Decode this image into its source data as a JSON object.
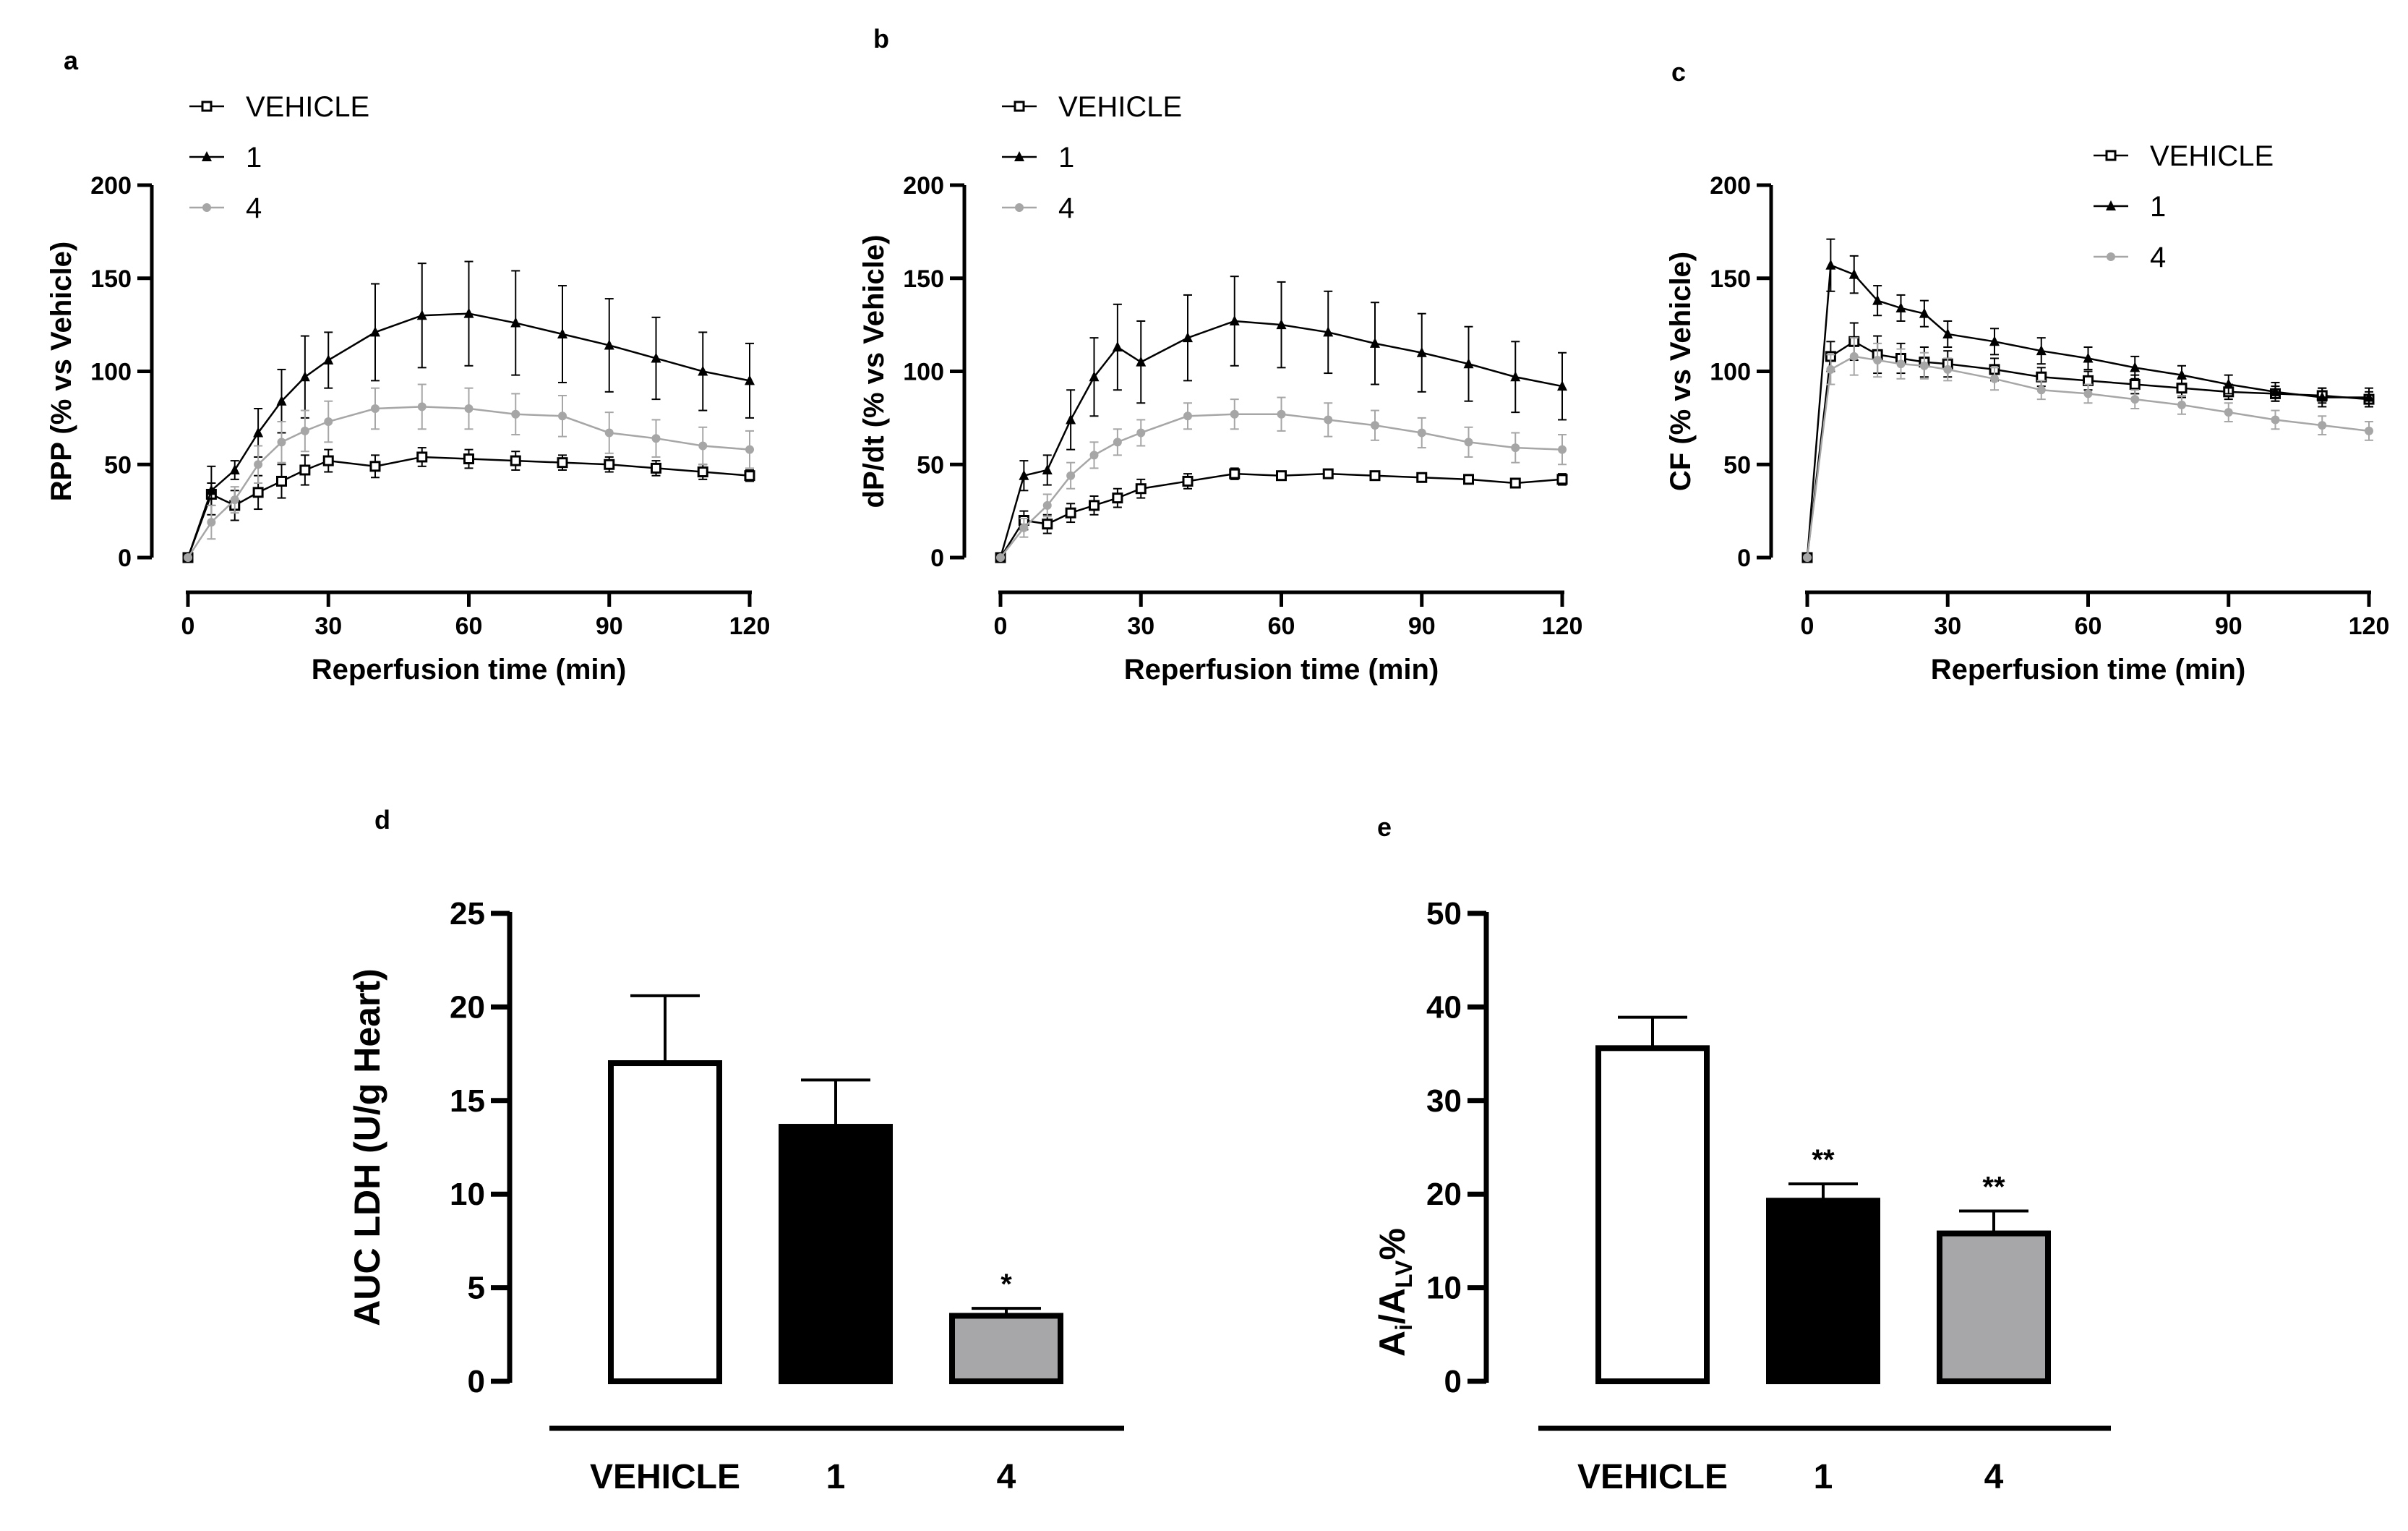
{
  "figure": {
    "colors": {
      "vehicle": "#000000",
      "c1": "#000000",
      "c4": "#a6a6a6",
      "bar_vehicle": "#ffffff",
      "bar_1": "#000000",
      "bar_4": "#a7a7aa"
    }
  },
  "chart_data": [
    {
      "panel": "a",
      "type": "line",
      "xlabel": "Reperfusion time (min)",
      "ylabel": "RPP (% vs Vehicle)",
      "xlim": [
        0,
        120
      ],
      "ylim": [
        0,
        200
      ],
      "xticks": [
        "0",
        "30",
        "60",
        "90",
        "120"
      ],
      "yticks": [
        "0",
        "50",
        "100",
        "150",
        "200"
      ],
      "legend": [
        "VEHICLE",
        "1",
        "4"
      ],
      "x": [
        0,
        5,
        10,
        15,
        20,
        25,
        30,
        40,
        50,
        60,
        70,
        80,
        90,
        100,
        110,
        120
      ],
      "series": [
        {
          "name": "VEHICLE",
          "values": [
            0,
            34,
            28,
            35,
            41,
            47,
            52,
            49,
            54,
            53,
            52,
            51,
            50,
            48,
            46,
            44
          ],
          "errors": [
            0,
            6,
            8,
            9,
            9,
            8,
            6,
            6,
            5,
            5,
            5,
            4,
            4,
            4,
            4,
            3
          ]
        },
        {
          "name": "1",
          "values": [
            0,
            36,
            47,
            67,
            84,
            97,
            106,
            121,
            130,
            131,
            126,
            120,
            114,
            107,
            100,
            95
          ],
          "errors": [
            0,
            13,
            5,
            13,
            17,
            22,
            15,
            26,
            28,
            28,
            28,
            26,
            25,
            22,
            21,
            20
          ]
        },
        {
          "name": "4",
          "values": [
            0,
            19,
            31,
            50,
            62,
            68,
            73,
            80,
            81,
            80,
            77,
            76,
            67,
            64,
            60,
            58
          ],
          "errors": [
            0,
            9,
            7,
            10,
            11,
            11,
            11,
            11,
            12,
            11,
            11,
            11,
            11,
            10,
            10,
            10
          ]
        }
      ]
    },
    {
      "panel": "b",
      "type": "line",
      "xlabel": "Reperfusion time (min)",
      "ylabel": "dP/dt (% vs Vehicle)",
      "xlim": [
        0,
        120
      ],
      "ylim": [
        0,
        200
      ],
      "xticks": [
        "0",
        "30",
        "60",
        "90",
        "120"
      ],
      "yticks": [
        "0",
        "50",
        "100",
        "150",
        "200"
      ],
      "legend": [
        "VEHICLE",
        "1",
        "4"
      ],
      "x": [
        0,
        5,
        10,
        15,
        20,
        25,
        30,
        40,
        50,
        60,
        70,
        80,
        90,
        100,
        110,
        120
      ],
      "series": [
        {
          "name": "VEHICLE",
          "values": [
            0,
            20,
            18,
            24,
            28,
            32,
            37,
            41,
            45,
            44,
            45,
            44,
            43,
            42,
            40,
            42
          ],
          "errors": [
            0,
            5,
            5,
            5,
            5,
            5,
            5,
            4,
            3,
            2,
            2,
            2,
            2,
            2,
            2,
            3
          ]
        },
        {
          "name": "1",
          "values": [
            0,
            44,
            47,
            74,
            97,
            113,
            105,
            118,
            127,
            125,
            121,
            115,
            110,
            104,
            97,
            92
          ],
          "errors": [
            0,
            8,
            8,
            16,
            21,
            23,
            22,
            23,
            24,
            23,
            22,
            22,
            21,
            20,
            19,
            18
          ]
        },
        {
          "name": "4",
          "values": [
            0,
            16,
            28,
            44,
            55,
            62,
            67,
            76,
            77,
            77,
            74,
            71,
            67,
            62,
            59,
            58
          ],
          "errors": [
            0,
            5,
            6,
            7,
            7,
            7,
            7,
            7,
            8,
            9,
            9,
            8,
            8,
            8,
            8,
            8
          ]
        }
      ]
    },
    {
      "panel": "c",
      "type": "line",
      "xlabel": "Reperfusion time (min)",
      "ylabel": "CF (% vs Vehicle)",
      "xlim": [
        0,
        120
      ],
      "ylim": [
        0,
        200
      ],
      "xticks": [
        "0",
        "30",
        "60",
        "90",
        "120"
      ],
      "yticks": [
        "0",
        "50",
        "100",
        "150",
        "200"
      ],
      "legend": [
        "VEHICLE",
        "1",
        "4"
      ],
      "x": [
        0,
        5,
        10,
        15,
        20,
        25,
        30,
        40,
        50,
        60,
        70,
        80,
        90,
        100,
        110,
        120
      ],
      "series": [
        {
          "name": "VEHICLE",
          "values": [
            0,
            108,
            116,
            109,
            107,
            105,
            104,
            101,
            97,
            95,
            93,
            91,
            89,
            88,
            87,
            85
          ],
          "errors": [
            0,
            8,
            10,
            10,
            8,
            8,
            7,
            6,
            5,
            5,
            5,
            5,
            4,
            4,
            4,
            4
          ]
        },
        {
          "name": "1",
          "values": [
            0,
            157,
            152,
            138,
            134,
            131,
            120,
            116,
            111,
            107,
            102,
            98,
            93,
            89,
            86,
            86
          ],
          "errors": [
            0,
            14,
            10,
            8,
            7,
            7,
            7,
            7,
            7,
            6,
            6,
            5,
            5,
            5,
            5,
            5
          ]
        },
        {
          "name": "4",
          "values": [
            0,
            101,
            108,
            106,
            104,
            103,
            101,
            96,
            90,
            88,
            85,
            82,
            78,
            74,
            71,
            68
          ],
          "errors": [
            0,
            8,
            10,
            9,
            8,
            7,
            6,
            6,
            5,
            5,
            5,
            5,
            5,
            5,
            5,
            5
          ]
        }
      ]
    },
    {
      "panel": "d",
      "type": "bar",
      "ylabel": "AUC LDH (U/g Heart)",
      "ylim": [
        0,
        25
      ],
      "yticks": [
        "0",
        "5",
        "10",
        "15",
        "20",
        "25"
      ],
      "categories": [
        "VEHICLE",
        "1",
        "4"
      ],
      "values": [
        17,
        13.6,
        3.5
      ],
      "errors": [
        3.6,
        2.5,
        0.4
      ],
      "annotations": [
        "",
        "",
        "*"
      ]
    },
    {
      "panel": "e",
      "type": "bar",
      "ylabel_main": "A",
      "ylabel_sub1": "i",
      "ylabel_mid": "/A",
      "ylabel_sub2": "LV",
      "ylabel_end": "%",
      "ylim": [
        0,
        50
      ],
      "yticks": [
        "0",
        "10",
        "20",
        "30",
        "40",
        "50"
      ],
      "categories": [
        "VEHICLE",
        "1",
        "4"
      ],
      "values": [
        35.6,
        19.3,
        15.8
      ],
      "errors": [
        3.3,
        1.8,
        2.4
      ],
      "annotations": [
        "",
        "**",
        "**"
      ]
    }
  ]
}
